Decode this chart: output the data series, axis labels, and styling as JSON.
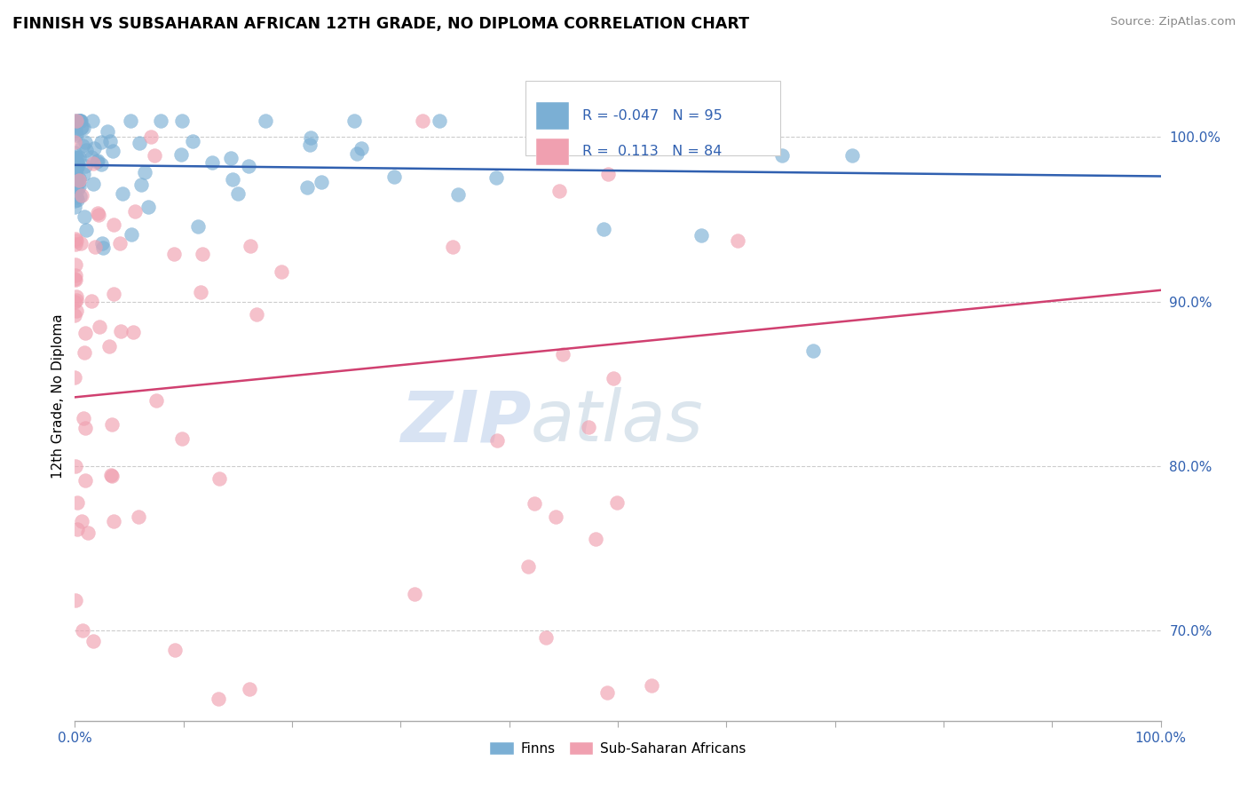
{
  "title": "FINNISH VS SUBSAHARAN AFRICAN 12TH GRADE, NO DIPLOMA CORRELATION CHART",
  "source": "Source: ZipAtlas.com",
  "ylabel": "12th Grade, No Diploma",
  "legend_label_finns": "Finns",
  "legend_label_africans": "Sub-Saharan Africans",
  "r_finns": -0.047,
  "n_finns": 95,
  "r_africans": 0.113,
  "n_africans": 84,
  "blue_color": "#7bafd4",
  "pink_color": "#f0a0b0",
  "blue_line_color": "#3060b0",
  "pink_line_color": "#d04070",
  "ytick_labels": [
    "70.0%",
    "80.0%",
    "90.0%",
    "100.0%"
  ],
  "ytick_values": [
    0.7,
    0.8,
    0.9,
    1.0
  ],
  "xlim": [
    0,
    1
  ],
  "ylim": [
    0.645,
    1.04
  ],
  "background_color": "#ffffff",
  "watermark_zip": "ZIP",
  "watermark_atlas": "atlas",
  "seed": 77
}
